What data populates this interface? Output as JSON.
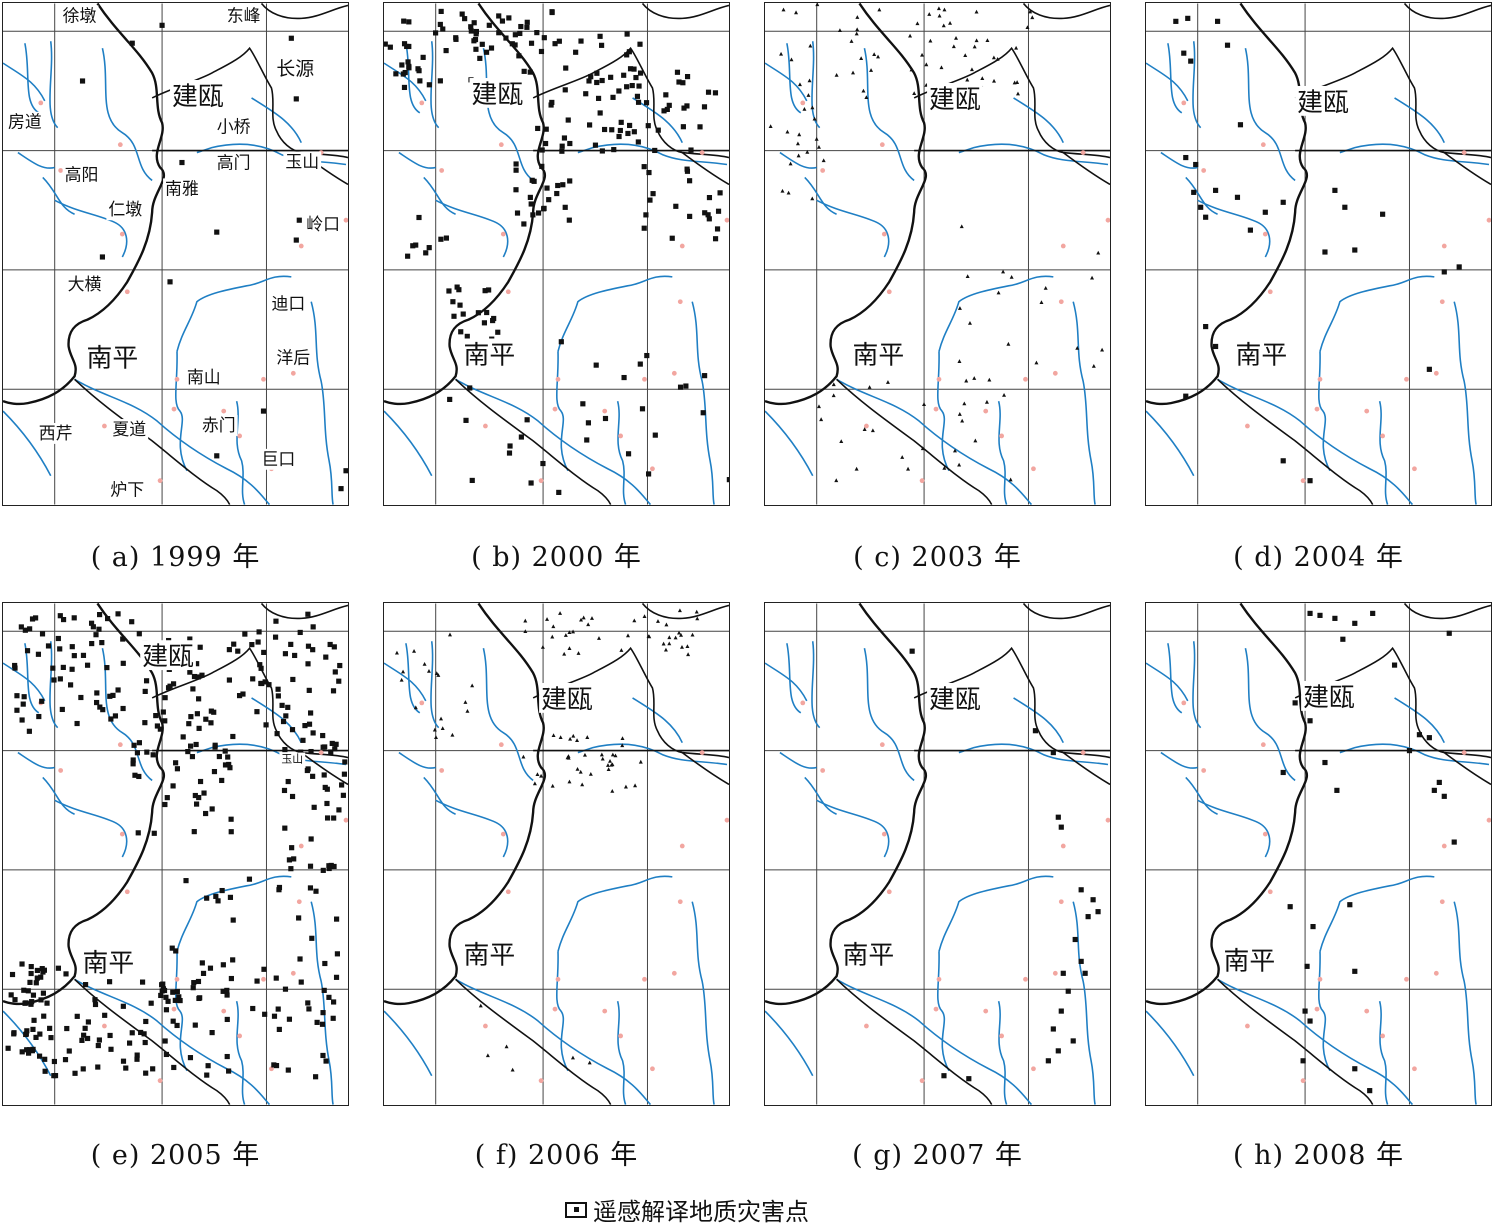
{
  "colors": {
    "river": "#1f7fc4",
    "boundary": "#111111",
    "grid": "#444444",
    "town": "#f2a6a0",
    "hazard": "#111111"
  },
  "panels": [
    {
      "caption": "( a)  1999 年",
      "labels": [
        "徐墩",
        "东峰",
        "长源",
        "建瓯",
        "房道",
        "小桥",
        "高阳",
        "高门",
        "南雅",
        "玉山",
        "仁墩",
        "岭口",
        "大横",
        "迪口",
        "南平",
        "洋后",
        "南山",
        "西芹",
        "夏道",
        "赤门",
        "巨口",
        "炉下"
      ],
      "hazards": [
        [
          80,
          78
        ],
        [
          130,
          40
        ],
        [
          160,
          22
        ],
        [
          290,
          35
        ],
        [
          295,
          96
        ],
        [
          180,
          160
        ],
        [
          215,
          230
        ],
        [
          298,
          218
        ],
        [
          295,
          238
        ],
        [
          168,
          280
        ],
        [
          262,
          410
        ],
        [
          215,
          455
        ],
        [
          345,
          470
        ],
        [
          340,
          488
        ],
        [
          100,
          255
        ]
      ]
    },
    {
      "caption": "( b)  2000 年",
      "labels": [
        "建瓯",
        "南平"
      ],
      "hazards": []
    },
    {
      "caption": "( c)  2003 年",
      "labels": [
        "建瓯",
        "南平"
      ],
      "hazards": []
    },
    {
      "caption": "( d)  2004 年",
      "labels": [
        "建瓯",
        "南平"
      ],
      "hazards": [
        [
          30,
          18
        ],
        [
          42,
          15
        ],
        [
          72,
          18
        ],
        [
          38,
          50
        ],
        [
          45,
          58
        ],
        [
          82,
          42
        ],
        [
          95,
          122
        ],
        [
          40,
          155
        ],
        [
          50,
          162
        ],
        [
          48,
          190
        ],
        [
          55,
          205
        ],
        [
          70,
          188
        ],
        [
          60,
          215
        ],
        [
          92,
          195
        ],
        [
          120,
          210
        ],
        [
          105,
          228
        ],
        [
          138,
          200
        ],
        [
          190,
          188
        ],
        [
          200,
          205
        ],
        [
          180,
          250
        ],
        [
          210,
          248
        ],
        [
          238,
          212
        ],
        [
          300,
          270
        ],
        [
          315,
          265
        ],
        [
          60,
          325
        ],
        [
          70,
          345
        ],
        [
          40,
          395
        ],
        [
          138,
          460
        ],
        [
          165,
          480
        ],
        [
          285,
          368
        ]
      ]
    },
    {
      "caption": "( e)  2005 年",
      "labels": [
        "建瓯",
        "玉山",
        "南平"
      ],
      "hazards": []
    },
    {
      "caption": "( f)  2006 年",
      "labels": [
        "建瓯",
        "南平"
      ],
      "hazards": []
    },
    {
      "caption": "( g)  2007 年",
      "labels": [
        "建瓯",
        "南平"
      ],
      "hazards": [
        [
          148,
          48
        ],
        [
          272,
          128
        ],
        [
          290,
          150
        ],
        [
          295,
          215
        ],
        [
          298,
          225
        ],
        [
          318,
          288
        ],
        [
          330,
          298
        ],
        [
          335,
          310
        ],
        [
          325,
          315
        ],
        [
          312,
          338
        ],
        [
          318,
          360
        ],
        [
          322,
          372
        ],
        [
          300,
          372
        ],
        [
          305,
          390
        ],
        [
          298,
          410
        ],
        [
          290,
          428
        ],
        [
          310,
          440
        ],
        [
          295,
          450
        ],
        [
          285,
          460
        ],
        [
          180,
          475
        ],
        [
          205,
          478
        ]
      ]
    },
    {
      "caption": "( h)  2008 年",
      "labels": [
        "建瓯",
        "南平"
      ],
      "hazards": [
        [
          165,
          10
        ],
        [
          175,
          12
        ],
        [
          190,
          15
        ],
        [
          210,
          20
        ],
        [
          228,
          10
        ],
        [
          198,
          36
        ],
        [
          250,
          62
        ],
        [
          305,
          30
        ],
        [
          150,
          100
        ],
        [
          165,
          118
        ],
        [
          265,
          148
        ],
        [
          275,
          132
        ],
        [
          285,
          135
        ],
        [
          138,
          170
        ],
        [
          180,
          160
        ],
        [
          192,
          188
        ],
        [
          295,
          180
        ],
        [
          300,
          194
        ],
        [
          290,
          188
        ],
        [
          310,
          240
        ],
        [
          145,
          305
        ],
        [
          205,
          303
        ],
        [
          168,
          325
        ],
        [
          162,
          365
        ],
        [
          210,
          370
        ],
        [
          160,
          410
        ],
        [
          165,
          420
        ],
        [
          158,
          460
        ],
        [
          210,
          468
        ],
        [
          225,
          490
        ]
      ]
    }
  ],
  "legend": {
    "label": "遥感解译地质灾害点"
  }
}
